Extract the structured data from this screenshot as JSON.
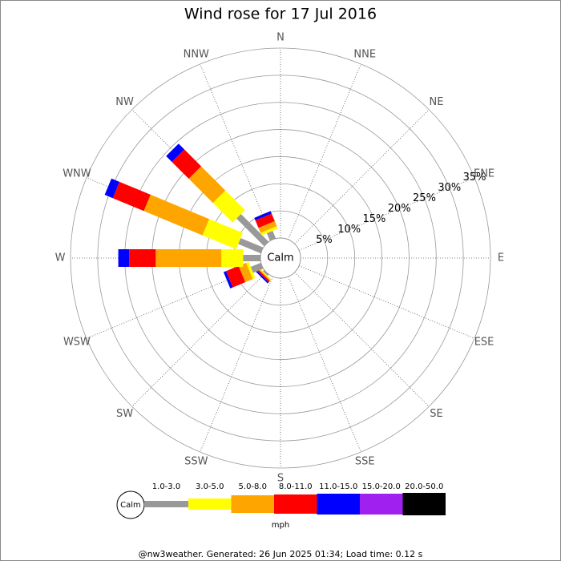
{
  "chart_data": {
    "type": "windrose",
    "title": "Wind rose for 17 Jul 2016",
    "categories": [
      "N",
      "NNE",
      "NE",
      "ENE",
      "E",
      "ESE",
      "SE",
      "SSE",
      "S",
      "SSW",
      "SW",
      "WSW",
      "W",
      "WNW",
      "NW",
      "NNW"
    ],
    "series": [
      {
        "name": "1.0-3.0",
        "color": "#999999",
        "values": [
          0,
          0,
          0,
          0,
          0,
          0,
          0,
          0,
          0,
          0,
          0.3,
          2,
          3.2,
          4.5,
          7.2,
          1.5
        ]
      },
      {
        "name": "3.0-5.0",
        "color": "#ffff00",
        "values": [
          0,
          0,
          0,
          0,
          0,
          0,
          0,
          0,
          0,
          0,
          0.2,
          0.5,
          4.0,
          6.7,
          5.1,
          0.5
        ]
      },
      {
        "name": "5.0-8.0",
        "color": "#ffa500",
        "values": [
          0,
          0,
          0,
          0,
          0,
          0,
          0,
          0,
          0,
          0,
          0.2,
          1.5,
          12.1,
          11.7,
          6.3,
          1.0
        ]
      },
      {
        "name": "8.0-11.0",
        "color": "#ff0000",
        "values": [
          0,
          0,
          0,
          0,
          0,
          0,
          0,
          0,
          0,
          0,
          0.3,
          2.5,
          4.9,
          6.2,
          4.4,
          1.5
        ]
      },
      {
        "name": "11.0-15.0",
        "color": "#0000ff",
        "values": [
          0,
          0,
          0,
          0,
          0,
          0,
          0,
          0,
          0,
          0,
          0.3,
          0.5,
          2.0,
          1.6,
          1.5,
          0.5
        ]
      },
      {
        "name": "15.0-20.0",
        "color": "#a020f0",
        "values": [
          0,
          0,
          0,
          0,
          0,
          0,
          0,
          0,
          0,
          0,
          0,
          0,
          0,
          0,
          0,
          0
        ]
      },
      {
        "name": "20.0-50.0",
        "color": "#000000",
        "values": [
          0,
          0,
          0,
          0,
          0,
          0,
          0,
          0,
          0,
          0,
          0,
          0,
          0,
          0,
          0,
          0
        ]
      }
    ],
    "rlim": [
      0,
      35
    ],
    "rticks": [
      {
        "value": 5,
        "label": "5%"
      },
      {
        "value": 10,
        "label": "10%"
      },
      {
        "value": 15,
        "label": "15%"
      },
      {
        "value": 20,
        "label": "20%"
      },
      {
        "value": 25,
        "label": "25%"
      },
      {
        "value": 30,
        "label": "30%"
      },
      {
        "value": 35,
        "label": "35%"
      }
    ],
    "grid": true,
    "calm_label": "Calm",
    "unit_label": "mph",
    "footer": "@nw3weather. Generated: 26 Jun 2025 01:34; Load time: 0.12 s"
  }
}
